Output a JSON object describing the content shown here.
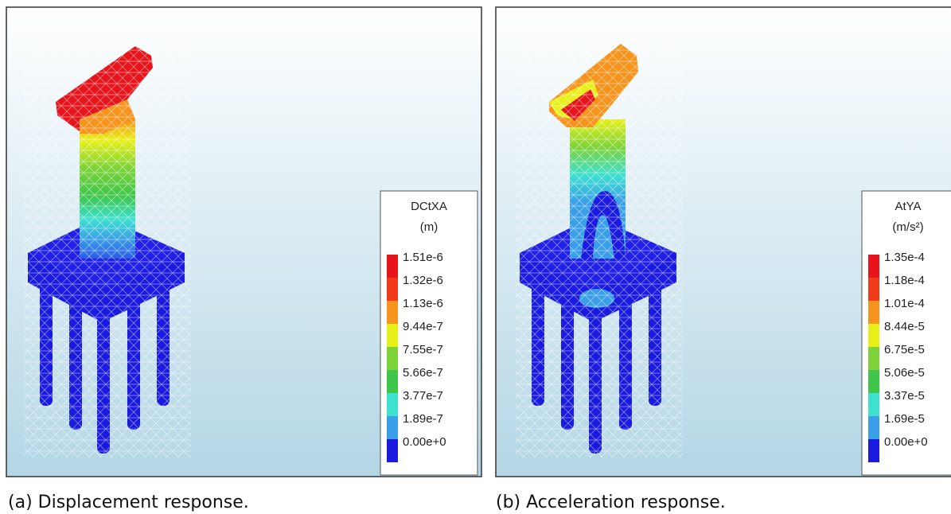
{
  "panels": [
    {
      "legend": {
        "title": "DCtXA",
        "unit": "(m)",
        "labels": [
          "1.51e-6",
          "1.32e-6",
          "1.13e-6",
          "9.44e-7",
          "7.55e-7",
          "5.66e-7",
          "3.77e-7",
          "1.89e-7",
          "0.00e+0"
        ]
      },
      "caption": "(a) Displacement response."
    },
    {
      "legend": {
        "title": "AtYA",
        "unit": "(m/s²)",
        "labels": [
          "1.35e-4",
          "1.18e-4",
          "1.01e-4",
          "8.44e-5",
          "6.75e-5",
          "5.06e-5",
          "3.37e-5",
          "1.69e-5",
          "0.00e+0"
        ]
      },
      "caption": "(b) Acceleration response."
    }
  ]
}
